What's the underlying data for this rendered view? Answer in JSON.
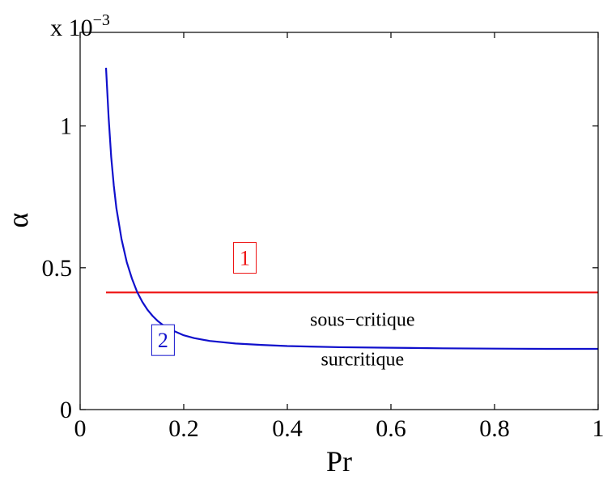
{
  "chart_data": {
    "type": "line",
    "xlabel": "Pr",
    "ylabel": "α",
    "y_scale_prefix": "x 10",
    "y_scale_exponent": "−3",
    "xlim": [
      0,
      1
    ],
    "ylim": [
      0,
      0.00133
    ],
    "xticks": [
      0,
      0.2,
      0.4,
      0.6,
      0.8,
      1
    ],
    "xtick_labels": [
      "0",
      "0.2",
      "0.4",
      "0.6",
      "0.8",
      "1"
    ],
    "yticks": [
      0,
      0.0005,
      0.001
    ],
    "ytick_labels": [
      "0",
      "0.5",
      "1"
    ],
    "grid": false,
    "series": [
      {
        "tag": "1",
        "color": "#ee1111",
        "x": [
          0.05,
          1.0
        ],
        "y": [
          0.000413,
          0.000413
        ]
      },
      {
        "tag": "2",
        "color": "#1010cc",
        "x": [
          0.05,
          0.055,
          0.06,
          0.065,
          0.07,
          0.08,
          0.09,
          0.1,
          0.11,
          0.12,
          0.13,
          0.14,
          0.15,
          0.16,
          0.18,
          0.2,
          0.22,
          0.25,
          0.3,
          0.35,
          0.4,
          0.45,
          0.5,
          0.6,
          0.7,
          0.8,
          0.9,
          1.0
        ],
        "y": [
          0.001205,
          0.00103,
          0.00089,
          0.00079,
          0.00071,
          0.0006,
          0.00052,
          0.000462,
          0.000415,
          0.00038,
          0.000352,
          0.00033,
          0.000312,
          0.000298,
          0.000278,
          0.000262,
          0.000252,
          0.000242,
          0.000233,
          0.000228,
          0.000224,
          0.000222,
          0.00022,
          0.000218,
          0.000216,
          0.000215,
          0.000214,
          0.000214
        ]
      }
    ],
    "annotations": [
      {
        "text": "sous−critique",
        "x": 0.545,
        "y": 0.000295
      },
      {
        "text": "surcritique",
        "x": 0.545,
        "y": 0.000155
      }
    ]
  }
}
